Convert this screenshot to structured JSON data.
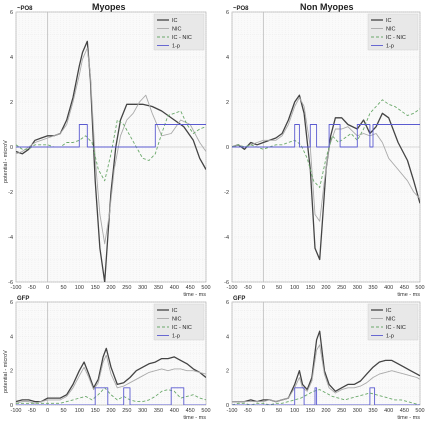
{
  "column_titles": [
    "Myopes",
    "Non Myopes"
  ],
  "y_axis_label": "potential - microV",
  "x_axis_unit": "time - ms",
  "colors": {
    "IC": "#444444",
    "NIC": "#aaaaaa",
    "IC - NIC": "#6aa86a",
    "1-p": "#5a5ad0"
  },
  "chart_data": [
    {
      "type": "line",
      "tag": "~PO8",
      "column": "Myopes",
      "xlim": [
        -100,
        500
      ],
      "ylim": [
        -6,
        6
      ],
      "xticks": [
        -100,
        -50,
        0,
        50,
        100,
        150,
        200,
        250,
        300,
        350,
        400,
        450,
        500
      ],
      "yticks": [
        -6,
        -4,
        -2,
        0,
        2,
        4,
        6
      ],
      "legend": [
        "IC",
        "NIC",
        "IC - NIC",
        "1-p"
      ],
      "series": [
        {
          "name": "IC",
          "x": [
            -100,
            -80,
            -60,
            -40,
            -20,
            0,
            20,
            40,
            60,
            80,
            100,
            110,
            125,
            135,
            150,
            165,
            180,
            190,
            200,
            215,
            230,
            250,
            270,
            300,
            330,
            360,
            380,
            400,
            430,
            460,
            480,
            500
          ],
          "y": [
            -0.2,
            -0.3,
            -0.1,
            0.3,
            0.4,
            0.5,
            0.5,
            0.6,
            1.2,
            2.2,
            3.6,
            4.2,
            4.7,
            3.0,
            -1.5,
            -4.5,
            -6.0,
            -4.0,
            -2.0,
            0.0,
            1.2,
            1.9,
            1.9,
            1.9,
            1.8,
            1.6,
            1.4,
            1.2,
            0.9,
            0.3,
            -0.5,
            -1.0
          ]
        },
        {
          "name": "NIC",
          "x": [
            -100,
            -80,
            -60,
            -40,
            -20,
            0,
            20,
            40,
            60,
            80,
            100,
            110,
            125,
            135,
            150,
            165,
            180,
            195,
            210,
            230,
            250,
            270,
            290,
            310,
            330,
            360,
            390,
            420,
            450,
            480,
            500
          ],
          "y": [
            -0.3,
            -0.2,
            0.0,
            0.2,
            0.3,
            0.4,
            0.5,
            0.6,
            1.0,
            2.0,
            3.2,
            3.9,
            4.4,
            3.2,
            -0.5,
            -3.0,
            -4.3,
            -3.0,
            -1.0,
            0.5,
            1.2,
            1.5,
            2.0,
            2.3,
            1.5,
            0.5,
            0.6,
            1.2,
            1.0,
            0.2,
            -0.2
          ]
        },
        {
          "name": "IC - NIC",
          "x": [
            -100,
            -80,
            -60,
            -40,
            -20,
            0,
            20,
            40,
            60,
            80,
            100,
            120,
            140,
            160,
            180,
            200,
            220,
            240,
            260,
            280,
            300,
            320,
            340,
            360,
            380,
            400,
            420,
            440,
            460,
            480,
            500
          ],
          "y": [
            0.1,
            -0.1,
            -0.1,
            0.1,
            0.1,
            0.1,
            0.0,
            0.0,
            0.2,
            0.2,
            0.3,
            0.5,
            0.2,
            -1.0,
            -1.5,
            -0.3,
            1.2,
            1.0,
            0.5,
            0.0,
            -0.5,
            -0.6,
            -0.3,
            0.6,
            1.4,
            1.5,
            1.6,
            1.0,
            0.6,
            0.8,
            0.9
          ]
        },
        {
          "name": "1-p",
          "x": [
            -100,
            100,
            100,
            125,
            125,
            150,
            150,
            160,
            160,
            220,
            220,
            235,
            235,
            240,
            240,
            340,
            340,
            500
          ],
          "y": [
            0,
            0,
            1,
            1,
            0,
            0,
            0,
            0,
            0,
            0,
            0,
            0,
            0,
            0,
            0,
            0,
            1,
            1
          ]
        }
      ]
    },
    {
      "type": "line",
      "tag": "~PO8",
      "column": "Non Myopes",
      "xlim": [
        -100,
        500
      ],
      "ylim": [
        -6,
        6
      ],
      "xticks": [
        -100,
        -50,
        0,
        50,
        100,
        150,
        200,
        250,
        300,
        350,
        400,
        450,
        500
      ],
      "yticks": [
        -6,
        -4,
        -2,
        0,
        2,
        4,
        6
      ],
      "legend": [
        "IC",
        "NIC",
        "IC - NIC",
        "1-p"
      ],
      "series": [
        {
          "name": "IC",
          "x": [
            -100,
            -80,
            -60,
            -40,
            -20,
            0,
            20,
            40,
            60,
            80,
            100,
            115,
            130,
            150,
            165,
            180,
            190,
            200,
            215,
            230,
            250,
            270,
            300,
            320,
            340,
            360,
            380,
            400,
            430,
            460,
            480,
            500
          ],
          "y": [
            0.0,
            0.1,
            -0.1,
            0.2,
            0.1,
            0.2,
            0.3,
            0.4,
            0.6,
            1.2,
            2.0,
            2.3,
            1.5,
            -1.0,
            -4.5,
            -5.0,
            -3.0,
            -1.0,
            0.5,
            1.3,
            1.3,
            1.0,
            0.8,
            1.2,
            0.6,
            0.9,
            1.5,
            1.3,
            0.2,
            -0.6,
            -1.5,
            -2.5
          ]
        },
        {
          "name": "NIC",
          "x": [
            -100,
            -80,
            -60,
            -40,
            -20,
            0,
            20,
            40,
            60,
            80,
            100,
            115,
            130,
            150,
            165,
            180,
            195,
            210,
            230,
            250,
            270,
            300,
            320,
            340,
            360,
            380,
            400,
            430,
            460,
            480,
            500
          ],
          "y": [
            0.0,
            0.1,
            0.0,
            0.1,
            0.2,
            0.3,
            0.3,
            0.3,
            0.5,
            1.0,
            1.8,
            2.2,
            1.8,
            0.0,
            -3.0,
            -3.3,
            -1.5,
            0.0,
            0.8,
            0.8,
            0.9,
            0.5,
            0.6,
            0.5,
            0.6,
            0.2,
            -0.5,
            -1.0,
            -1.5,
            -2.0,
            -2.3
          ]
        },
        {
          "name": "IC - NIC",
          "x": [
            -100,
            -80,
            -60,
            -40,
            -20,
            0,
            20,
            40,
            60,
            80,
            100,
            120,
            140,
            160,
            180,
            200,
            220,
            240,
            260,
            280,
            300,
            320,
            340,
            360,
            380,
            400,
            420,
            440,
            460,
            480,
            500
          ],
          "y": [
            0.0,
            0.1,
            0.0,
            0.1,
            0.0,
            -0.1,
            0.0,
            0.1,
            0.1,
            0.2,
            0.3,
            0.1,
            -0.5,
            -1.5,
            -1.8,
            -0.5,
            0.5,
            0.2,
            0.4,
            0.6,
            0.3,
            0.8,
            1.5,
            1.8,
            2.1,
            1.9,
            1.8,
            1.6,
            1.4,
            1.5,
            1.7
          ]
        },
        {
          "name": "1-p",
          "x": [
            -100,
            100,
            100,
            115,
            115,
            150,
            150,
            170,
            170,
            210,
            210,
            245,
            245,
            300,
            300,
            340,
            340,
            350,
            350,
            360,
            360,
            500
          ],
          "y": [
            0,
            0,
            1,
            1,
            0,
            0,
            1,
            1,
            0,
            0,
            1,
            1,
            0,
            0,
            1,
            1,
            0,
            0,
            1,
            1,
            1,
            1
          ]
        }
      ]
    },
    {
      "type": "line",
      "tag": "GFP",
      "column": "Myopes",
      "xlim": [
        -100,
        500
      ],
      "ylim": [
        0,
        6
      ],
      "xticks": [
        -100,
        -50,
        0,
        50,
        100,
        150,
        200,
        250,
        300,
        350,
        400,
        450,
        500
      ],
      "yticks": [
        0,
        2,
        4,
        6
      ],
      "legend": [
        "IC",
        "NIC",
        "IC - NIC",
        "1-p"
      ],
      "series": [
        {
          "name": "IC",
          "x": [
            -100,
            -80,
            -60,
            -40,
            -20,
            0,
            20,
            40,
            60,
            80,
            100,
            115,
            130,
            145,
            160,
            175,
            185,
            200,
            220,
            240,
            260,
            280,
            300,
            320,
            340,
            360,
            380,
            400,
            420,
            440,
            460,
            480,
            500
          ],
          "y": [
            0.2,
            0.3,
            0.3,
            0.2,
            0.2,
            0.4,
            0.4,
            0.4,
            0.6,
            1.2,
            2.0,
            2.5,
            1.8,
            1.0,
            1.5,
            2.8,
            3.3,
            2.2,
            1.2,
            1.3,
            1.6,
            2.0,
            2.2,
            2.4,
            2.5,
            2.7,
            2.7,
            2.8,
            2.6,
            2.4,
            2.1,
            1.9,
            1.6
          ]
        },
        {
          "name": "NIC",
          "x": [
            -100,
            -80,
            -60,
            -40,
            -20,
            0,
            20,
            40,
            60,
            80,
            100,
            115,
            130,
            145,
            160,
            175,
            185,
            200,
            220,
            240,
            260,
            280,
            300,
            320,
            340,
            360,
            380,
            400,
            420,
            440,
            460,
            480,
            500
          ],
          "y": [
            0.1,
            0.2,
            0.2,
            0.1,
            0.2,
            0.3,
            0.3,
            0.3,
            0.5,
            1.0,
            1.7,
            2.2,
            1.6,
            0.9,
            1.3,
            2.5,
            2.9,
            1.8,
            1.0,
            1.1,
            1.3,
            1.5,
            1.7,
            1.9,
            2.0,
            2.1,
            2.0,
            2.1,
            2.1,
            2.0,
            2.0,
            1.9,
            1.8
          ]
        },
        {
          "name": "IC - NIC",
          "x": [
            -100,
            -80,
            -60,
            -40,
            -20,
            0,
            20,
            40,
            60,
            80,
            100,
            120,
            140,
            160,
            180,
            200,
            220,
            240,
            260,
            280,
            300,
            320,
            340,
            360,
            380,
            400,
            420,
            440,
            460,
            480,
            500
          ],
          "y": [
            0.1,
            0.1,
            0.1,
            0.1,
            0.1,
            0.1,
            0.1,
            0.1,
            0.2,
            0.3,
            0.4,
            0.5,
            0.3,
            0.6,
            1.0,
            0.6,
            0.3,
            0.5,
            0.3,
            0.2,
            0.2,
            0.3,
            0.5,
            0.8,
            0.9,
            0.8,
            0.4,
            0.5,
            0.6,
            0.4,
            0.3
          ]
        },
        {
          "name": "1-p",
          "x": [
            -100,
            100,
            100,
            105,
            105,
            150,
            150,
            190,
            190,
            240,
            240,
            260,
            260,
            390,
            390,
            430,
            430,
            500
          ],
          "y": [
            0,
            0,
            0,
            0,
            0,
            0,
            1,
            1,
            0,
            0,
            1,
            1,
            0,
            0,
            1,
            1,
            0,
            0
          ]
        }
      ]
    },
    {
      "type": "line",
      "tag": "GFP",
      "column": "Non Myopes",
      "xlim": [
        -100,
        500
      ],
      "ylim": [
        0,
        6
      ],
      "xticks": [
        -100,
        -50,
        0,
        50,
        100,
        150,
        200,
        250,
        300,
        350,
        400,
        450,
        500
      ],
      "yticks": [
        0,
        2,
        4,
        6
      ],
      "legend": [
        "IC",
        "NIC",
        "IC - NIC",
        "1-p"
      ],
      "series": [
        {
          "name": "IC",
          "x": [
            -100,
            -80,
            -60,
            -40,
            -20,
            0,
            20,
            40,
            60,
            80,
            100,
            115,
            125,
            140,
            155,
            170,
            180,
            195,
            210,
            230,
            250,
            270,
            290,
            310,
            330,
            350,
            370,
            390,
            410,
            430,
            450,
            470,
            490,
            500
          ],
          "y": [
            0.2,
            0.2,
            0.2,
            0.3,
            0.2,
            0.3,
            0.3,
            0.2,
            0.3,
            0.4,
            1.2,
            2.0,
            1.2,
            0.9,
            1.6,
            3.8,
            4.3,
            2.0,
            1.2,
            0.8,
            1.0,
            1.2,
            1.2,
            1.4,
            1.8,
            2.2,
            2.5,
            2.6,
            2.6,
            2.4,
            2.2,
            2.0,
            1.8,
            1.7
          ]
        },
        {
          "name": "NIC",
          "x": [
            -100,
            -80,
            -60,
            -40,
            -20,
            0,
            20,
            40,
            60,
            80,
            100,
            115,
            125,
            140,
            155,
            170,
            180,
            195,
            210,
            230,
            250,
            270,
            290,
            310,
            330,
            350,
            370,
            390,
            410,
            430,
            450,
            470,
            490,
            500
          ],
          "y": [
            0.2,
            0.2,
            0.2,
            0.2,
            0.2,
            0.2,
            0.3,
            0.2,
            0.3,
            0.4,
            1.0,
            1.6,
            1.0,
            0.8,
            1.4,
            3.2,
            3.5,
            1.8,
            1.0,
            0.7,
            0.9,
            1.0,
            1.0,
            1.1,
            1.3,
            1.6,
            1.8,
            1.9,
            2.0,
            1.9,
            1.8,
            1.7,
            1.6,
            1.5
          ]
        },
        {
          "name": "IC - NIC",
          "x": [
            -100,
            -80,
            -60,
            -40,
            -20,
            0,
            20,
            40,
            60,
            80,
            100,
            120,
            140,
            160,
            180,
            200,
            220,
            240,
            260,
            280,
            300,
            320,
            340,
            360,
            380,
            400,
            420,
            440,
            460,
            480,
            500
          ],
          "y": [
            0.0,
            0.1,
            0.1,
            0.0,
            0.1,
            0.1,
            0.0,
            0.1,
            0.1,
            0.2,
            0.3,
            0.4,
            0.6,
            0.8,
            0.9,
            0.7,
            0.5,
            0.4,
            0.3,
            0.4,
            0.5,
            0.6,
            0.7,
            0.6,
            0.5,
            0.4,
            0.3,
            0.3,
            0.2,
            0.1,
            0.0
          ]
        },
        {
          "name": "1-p",
          "x": [
            -100,
            100,
            100,
            130,
            130,
            165,
            165,
            170,
            170,
            240,
            240,
            250,
            250,
            340,
            340,
            355,
            355,
            500
          ],
          "y": [
            0,
            0,
            1,
            1,
            0,
            0,
            1,
            1,
            0,
            0,
            0,
            0,
            0,
            0,
            1,
            1,
            0,
            0
          ]
        }
      ]
    }
  ]
}
